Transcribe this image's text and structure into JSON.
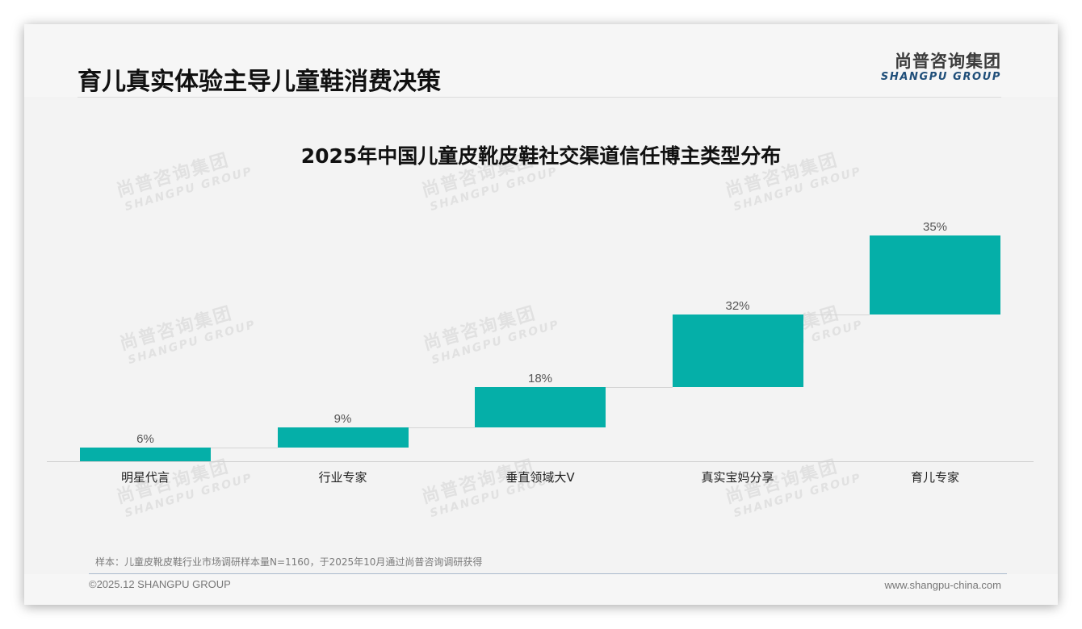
{
  "header": {
    "title": "育儿真实体验主导儿童鞋消费决策",
    "logo_cn": "尚普咨询集团",
    "logo_en": "SHANGPU GROUP"
  },
  "watermark": {
    "cn": "尚普咨询集团",
    "en": "SHANGPU GROUP"
  },
  "chart_data": {
    "type": "bar",
    "subtype": "waterfall",
    "title": "2025年中国儿童皮靴皮鞋社交渠道信任博主类型分布",
    "categories": [
      "明星代言",
      "行业专家",
      "垂直领域大V",
      "真实宝妈分享",
      "育儿专家"
    ],
    "values": [
      6,
      9,
      18,
      32,
      35
    ],
    "value_labels": [
      "6%",
      "9%",
      "18%",
      "32%",
      "35%"
    ],
    "cumulative_start": [
      0,
      6,
      15,
      33,
      65
    ],
    "cumulative_end": [
      6,
      15,
      33,
      65,
      100
    ],
    "xlabel": "",
    "ylabel": "",
    "ylim": [
      0,
      100
    ],
    "grid": false,
    "legend": "none",
    "bar_color": "#05afa8"
  },
  "footer": {
    "note": "样本：儿童皮靴皮鞋行业市场调研样本量N=1160，于2025年10月通过尚普咨询调研获得",
    "copyright": "©2025.12 SHANGPU GROUP",
    "website": "www.shangpu-china.com"
  }
}
